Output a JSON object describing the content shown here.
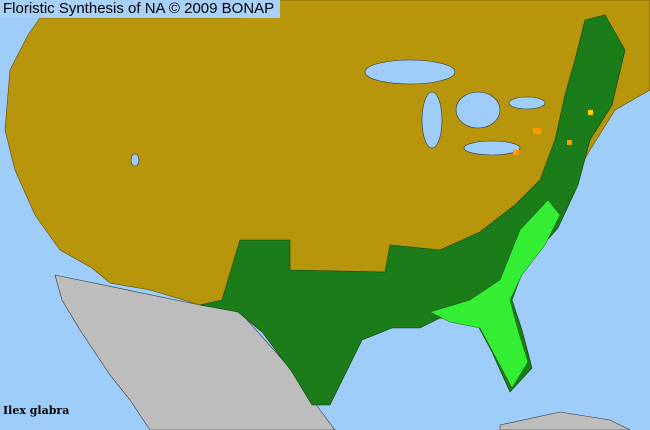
{
  "header": {
    "title": "Floristic Synthesis of NA © 2009 BONAP"
  },
  "map": {
    "species": "Ilex glabra",
    "colors": {
      "water": "#9fcdfa",
      "absent": "#b8960c",
      "present_native": "#1a7d1a",
      "rare_or_native_county": "#33ee33",
      "exotic": "#ff9900",
      "outside_range": "#bdbdbd"
    }
  }
}
